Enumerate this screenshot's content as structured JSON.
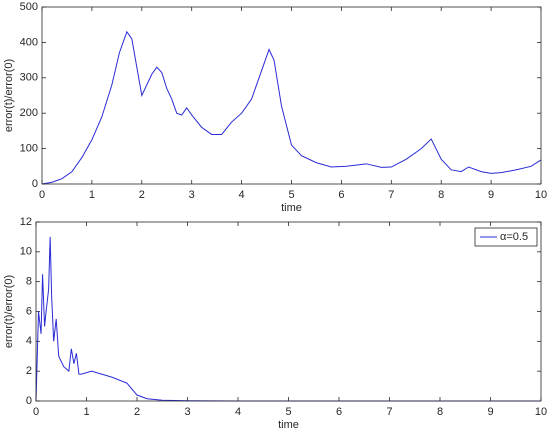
{
  "chart_data": [
    {
      "type": "line",
      "xlabel": "time",
      "ylabel": "error(t)/error(0)",
      "x": [
        0,
        0.2,
        0.4,
        0.6,
        0.8,
        1.0,
        1.2,
        1.4,
        1.55,
        1.7,
        1.8,
        1.9,
        2.0,
        2.1,
        2.2,
        2.3,
        2.4,
        2.5,
        2.6,
        2.7,
        2.8,
        2.9,
        3.0,
        3.2,
        3.4,
        3.6,
        3.8,
        4.0,
        4.2,
        4.4,
        4.55,
        4.65,
        4.8,
        5.0,
        5.2,
        5.5,
        5.8,
        6.1,
        6.5,
        6.8,
        7.0,
        7.3,
        7.6,
        7.8,
        8.0,
        8.2,
        8.4,
        8.55,
        8.8,
        9.0,
        9.2,
        9.5,
        9.8,
        10
      ],
      "values": [
        0,
        5,
        15,
        35,
        75,
        125,
        190,
        280,
        370,
        430,
        410,
        330,
        250,
        280,
        310,
        330,
        315,
        270,
        240,
        200,
        195,
        215,
        195,
        160,
        140,
        140,
        175,
        200,
        240,
        320,
        380,
        350,
        220,
        110,
        80,
        60,
        48,
        50,
        57,
        47,
        48,
        70,
        100,
        127,
        70,
        40,
        35,
        48,
        35,
        30,
        32,
        40,
        50,
        68
      ],
      "color": "#2a2ad6",
      "xlim": [
        0,
        10
      ],
      "xticks": [
        0,
        1,
        2,
        3,
        4,
        5,
        6,
        7,
        8,
        9,
        10
      ],
      "ylim": [
        0,
        500
      ],
      "yticks": [
        0,
        100,
        200,
        300,
        400,
        500
      ]
    },
    {
      "type": "line",
      "xlabel": "time",
      "ylabel": "error(t)/error(0)",
      "x": [
        0,
        0.05,
        0.1,
        0.13,
        0.17,
        0.2,
        0.25,
        0.28,
        0.31,
        0.35,
        0.4,
        0.45,
        0.55,
        0.65,
        0.7,
        0.75,
        0.8,
        0.85,
        0.9,
        1.1,
        1.3,
        1.5,
        1.8,
        2.0,
        2.2,
        2.5,
        3,
        4,
        10
      ],
      "series": [
        {
          "name": "α=0.5",
          "color": "#2a2ad6",
          "values": [
            0,
            6,
            4.5,
            8.5,
            5,
            6,
            7.5,
            11,
            7,
            4,
            5.5,
            3,
            2.3,
            2,
            3.5,
            2.5,
            3.2,
            1.8,
            1.8,
            2,
            1.8,
            1.6,
            1.2,
            0.4,
            0.15,
            0.05,
            0.02,
            0,
            0
          ]
        }
      ],
      "legend": "upper right",
      "xlim": [
        0,
        10
      ],
      "xticks": [
        0,
        1,
        2,
        3,
        4,
        5,
        6,
        7,
        8,
        9,
        10
      ],
      "ylim": [
        0,
        12
      ],
      "yticks": [
        0,
        2,
        4,
        6,
        8,
        10,
        12
      ]
    }
  ]
}
